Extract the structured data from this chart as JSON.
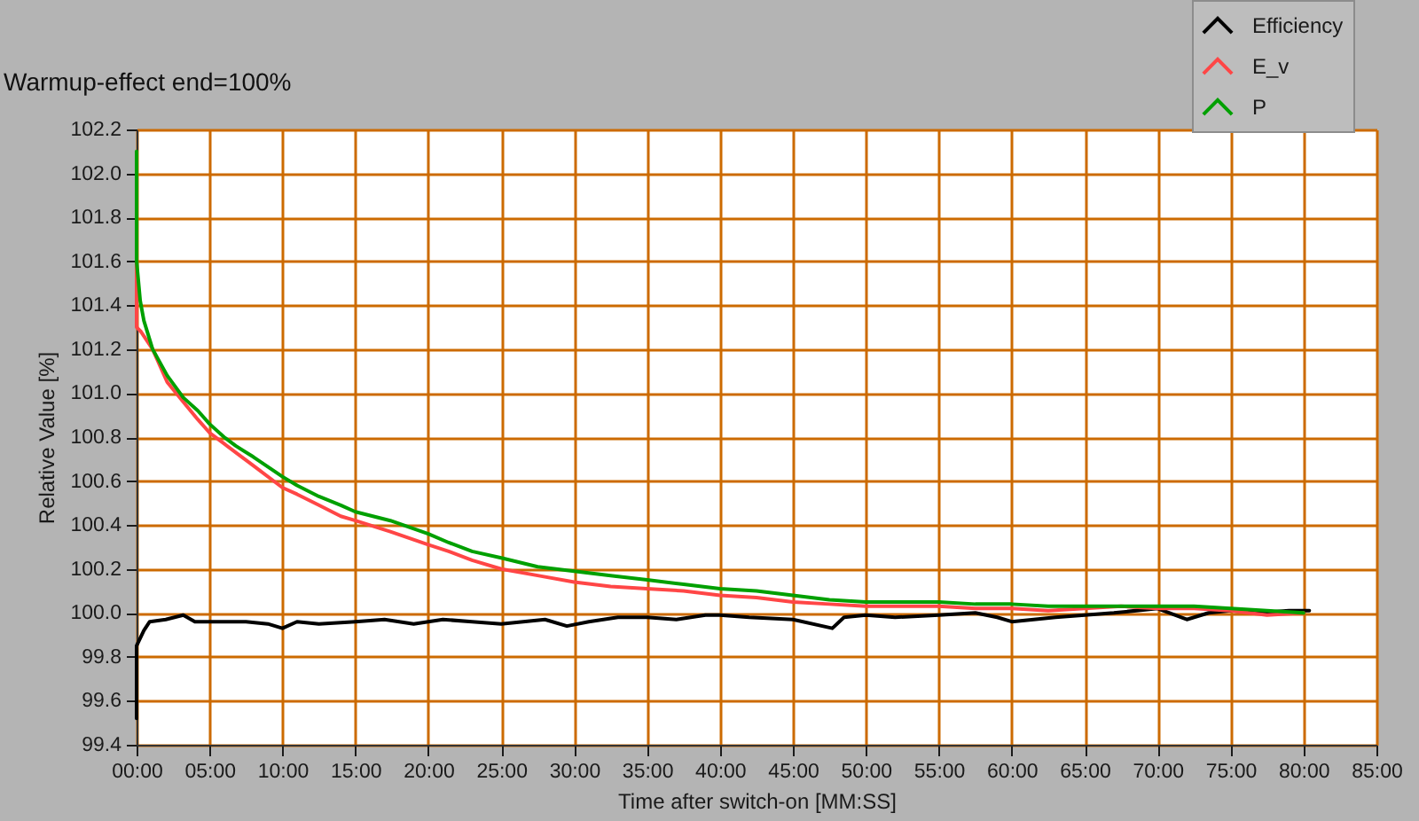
{
  "chart_data": {
    "type": "line",
    "title": "Warmup-effect end=100%",
    "xlabel": "Time after switch-on [MM:SS]",
    "ylabel": "Relative Value [%]",
    "xlim": [
      0,
      85
    ],
    "xticks": [
      {
        "value": 0,
        "label": "00:00"
      },
      {
        "value": 5,
        "label": "05:00"
      },
      {
        "value": 10,
        "label": "10:00"
      },
      {
        "value": 15,
        "label": "15:00"
      },
      {
        "value": 20,
        "label": "20:00"
      },
      {
        "value": 25,
        "label": "25:00"
      },
      {
        "value": 30,
        "label": "30:00"
      },
      {
        "value": 35,
        "label": "35:00"
      },
      {
        "value": 40,
        "label": "40:00"
      },
      {
        "value": 45,
        "label": "45:00"
      },
      {
        "value": 50,
        "label": "50:00"
      },
      {
        "value": 55,
        "label": "55:00"
      },
      {
        "value": 60,
        "label": "60:00"
      },
      {
        "value": 65,
        "label": "65:00"
      },
      {
        "value": 70,
        "label": "70:00"
      },
      {
        "value": 75,
        "label": "75:00"
      },
      {
        "value": 80,
        "label": "80:00"
      },
      {
        "value": 85,
        "label": "85:00"
      }
    ],
    "ylim": [
      99.4,
      102.2
    ],
    "yticks": [
      99.4,
      99.6,
      99.8,
      {
        "value": 100,
        "label": "100.0"
      },
      100.2,
      100.4,
      100.6,
      100.8,
      {
        "value": 101,
        "label": "101.0"
      },
      101.2,
      101.4,
      101.6,
      101.8,
      {
        "value": 102,
        "label": "102.0"
      },
      102.2
    ],
    "grid": true,
    "legend": "top right",
    "series": [
      {
        "name": "Efficiency",
        "color": "#000000",
        "x": [
          0,
          0,
          0.5,
          0.9,
          2,
          3.2,
          4,
          5,
          7.5,
          9,
          10,
          11,
          12.5,
          15,
          17,
          19,
          21,
          23,
          25,
          26.5,
          28,
          29.5,
          31,
          33,
          35,
          37,
          39,
          40,
          42,
          45,
          47.7,
          48.5,
          50,
          52,
          55,
          57.5,
          59,
          60,
          61.5,
          63,
          65,
          67,
          70,
          72,
          73.5,
          75,
          77,
          79,
          80.4
        ],
        "values": [
          99.52,
          99.85,
          99.92,
          99.96,
          99.97,
          99.99,
          99.96,
          99.96,
          99.96,
          99.95,
          99.93,
          99.96,
          99.95,
          99.96,
          99.97,
          99.95,
          99.97,
          99.96,
          99.95,
          99.96,
          99.97,
          99.94,
          99.96,
          99.98,
          99.98,
          99.97,
          99.99,
          99.99,
          99.98,
          99.97,
          99.93,
          99.98,
          99.99,
          99.98,
          99.99,
          100.0,
          99.98,
          99.96,
          99.97,
          99.98,
          99.99,
          100.0,
          100.02,
          99.97,
          100.0,
          100.01,
          100.0,
          100.01,
          100.01
        ]
      },
      {
        "name": "E_v",
        "color": "#ff4646",
        "x": [
          0,
          0,
          0.3,
          1.1,
          2.1,
          3.2,
          4.2,
          5,
          6,
          6.8,
          8,
          10,
          11,
          12.5,
          14,
          15,
          17.4,
          20,
          21.4,
          23,
          25,
          27.5,
          30,
          32.5,
          35,
          37.5,
          40,
          42.5,
          45,
          47.5,
          50,
          52.5,
          55,
          57.5,
          60,
          62.5,
          65,
          67.5,
          70,
          72.5,
          75,
          77.5,
          80
        ],
        "values": [
          101.6,
          101.3,
          101.28,
          101.2,
          101.05,
          100.96,
          100.88,
          100.82,
          100.77,
          100.73,
          100.67,
          100.57,
          100.54,
          100.49,
          100.44,
          100.42,
          100.37,
          100.31,
          100.28,
          100.24,
          100.2,
          100.17,
          100.14,
          100.12,
          100.11,
          100.1,
          100.08,
          100.07,
          100.05,
          100.04,
          100.03,
          100.03,
          100.03,
          100.02,
          100.02,
          100.01,
          100.02,
          100.03,
          100.02,
          100.02,
          100.01,
          99.99,
          100.0
        ]
      },
      {
        "name": "P",
        "color": "#00a000",
        "x": [
          0,
          0,
          0.25,
          0.5,
          1.1,
          2.1,
          3.2,
          4.2,
          5,
          6,
          6.8,
          8,
          10,
          11,
          12.5,
          14,
          15,
          17.4,
          20,
          21.4,
          23,
          25,
          27.5,
          30,
          32.5,
          35,
          37.5,
          40,
          42.5,
          45,
          47.5,
          50,
          52.5,
          55,
          57.5,
          60,
          62.5,
          65,
          67.5,
          70,
          72.5,
          75,
          77.5,
          80
        ],
        "values": [
          102.1,
          101.6,
          101.42,
          101.33,
          101.2,
          101.08,
          100.98,
          100.92,
          100.86,
          100.8,
          100.76,
          100.71,
          100.62,
          100.58,
          100.53,
          100.49,
          100.46,
          100.42,
          100.36,
          100.32,
          100.28,
          100.25,
          100.21,
          100.19,
          100.17,
          100.15,
          100.13,
          100.11,
          100.1,
          100.08,
          100.06,
          100.05,
          100.05,
          100.05,
          100.04,
          100.04,
          100.03,
          100.03,
          100.03,
          100.03,
          100.03,
          100.02,
          100.01,
          100.0
        ]
      }
    ]
  }
}
